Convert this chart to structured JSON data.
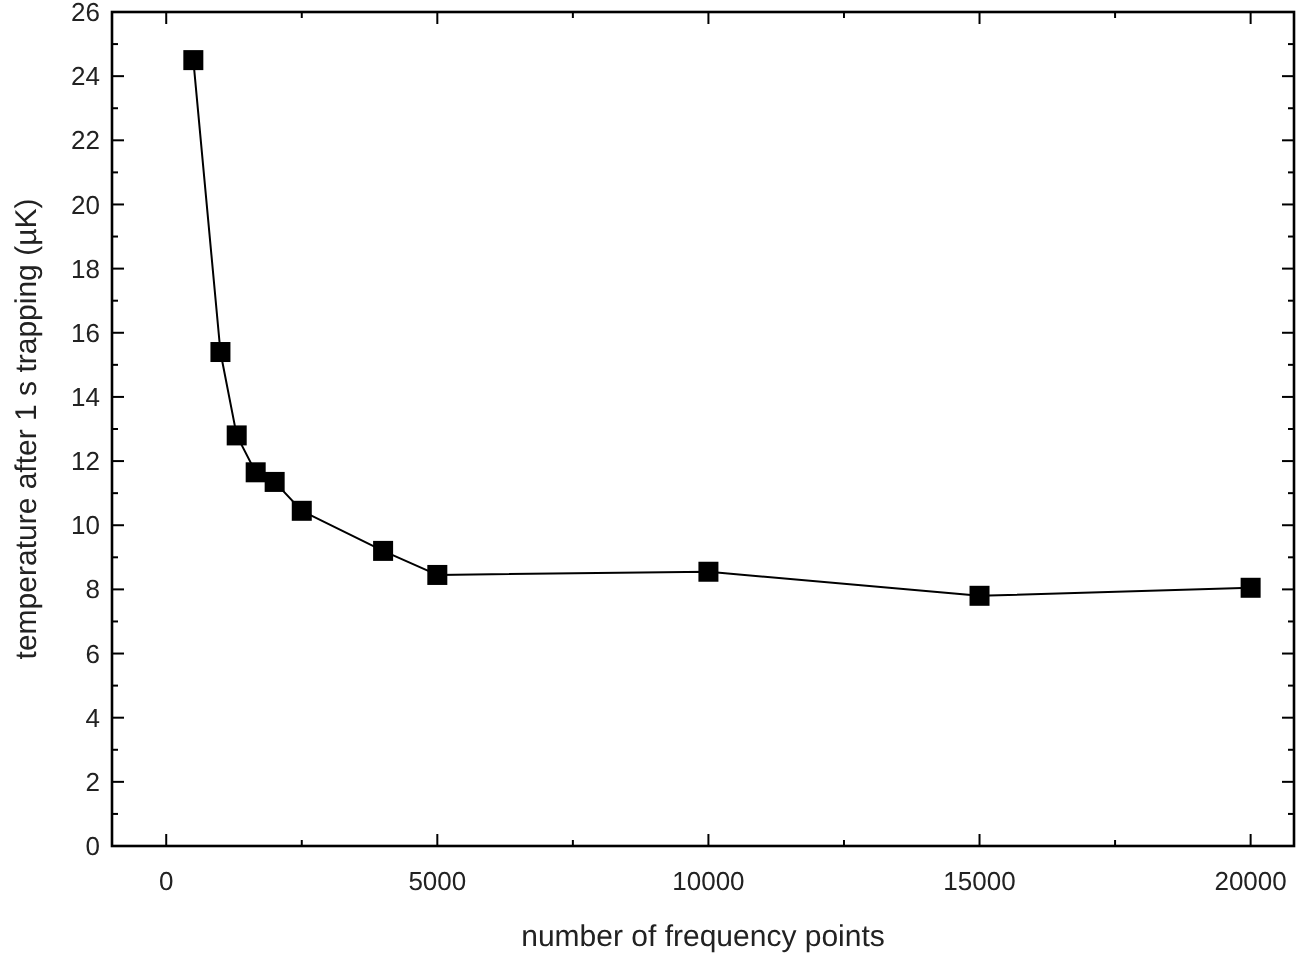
{
  "chart_data": {
    "type": "line",
    "xlabel": "number of frequency points",
    "ylabel": "temperature after 1 s trapping (µK)",
    "x": [
      500,
      1000,
      1300,
      1650,
      2000,
      2500,
      4000,
      5000,
      10000,
      15000,
      20000
    ],
    "series": [
      {
        "color": "#000000",
        "values": [
          24.5,
          15.4,
          12.8,
          11.65,
          11.35,
          10.45,
          9.2,
          8.45,
          8.55,
          7.8,
          8.05
        ]
      }
    ],
    "xlim": [
      -1000,
      20800
    ],
    "xticks": [
      0,
      5000,
      10000,
      15000,
      20000
    ],
    "ylim": [
      0,
      26
    ],
    "yticks": [
      0,
      2,
      4,
      6,
      8,
      10,
      12,
      14,
      16,
      18,
      20,
      22,
      24,
      26
    ],
    "grid": false,
    "marker": "square",
    "line_style": "solid"
  }
}
